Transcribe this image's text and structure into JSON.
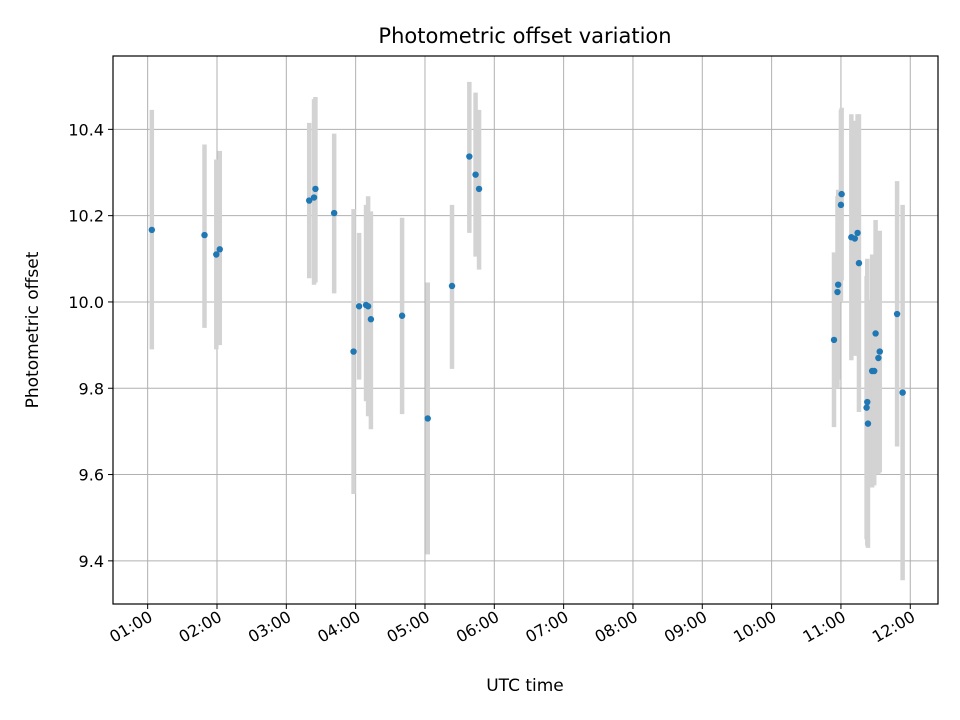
{
  "chart_data": {
    "type": "scatter",
    "title": "Photometric offset variation",
    "xlabel": "UTC time",
    "ylabel": "Photometric offset",
    "xlim_hours": [
      0.5,
      12.4
    ],
    "ylim": [
      9.3,
      10.57
    ],
    "grid": true,
    "x_ticks": [
      {
        "value": 1,
        "label": "01:00"
      },
      {
        "value": 2,
        "label": "02:00"
      },
      {
        "value": 3,
        "label": "03:00"
      },
      {
        "value": 4,
        "label": "04:00"
      },
      {
        "value": 5,
        "label": "05:00"
      },
      {
        "value": 6,
        "label": "06:00"
      },
      {
        "value": 7,
        "label": "07:00"
      },
      {
        "value": 8,
        "label": "08:00"
      },
      {
        "value": 9,
        "label": "09:00"
      },
      {
        "value": 10,
        "label": "10:00"
      },
      {
        "value": 11,
        "label": "11:00"
      },
      {
        "value": 12,
        "label": "12:00"
      }
    ],
    "y_ticks": [
      {
        "value": 9.4,
        "label": "9.4"
      },
      {
        "value": 9.6,
        "label": "9.6"
      },
      {
        "value": 9.8,
        "label": "9.8"
      },
      {
        "value": 10.0,
        "label": "10.0"
      },
      {
        "value": 10.2,
        "label": "10.2"
      },
      {
        "value": 10.4,
        "label": "10.4"
      }
    ],
    "colors": {
      "point": "#1f77b4",
      "errorbar": "#d3d3d3",
      "grid": "#b0b0b0"
    },
    "points": [
      {
        "x": 1.06,
        "y": 10.167,
        "lo": 9.89,
        "hi": 10.445
      },
      {
        "x": 1.82,
        "y": 10.155,
        "lo": 9.94,
        "hi": 10.365
      },
      {
        "x": 1.99,
        "y": 10.11,
        "lo": 9.89,
        "hi": 10.33
      },
      {
        "x": 2.04,
        "y": 10.122,
        "lo": 9.9,
        "hi": 10.35
      },
      {
        "x": 3.33,
        "y": 10.235,
        "lo": 10.055,
        "hi": 10.415
      },
      {
        "x": 3.4,
        "y": 10.242,
        "lo": 10.04,
        "hi": 10.47
      },
      {
        "x": 3.42,
        "y": 10.262,
        "lo": 10.045,
        "hi": 10.475
      },
      {
        "x": 3.69,
        "y": 10.206,
        "lo": 10.02,
        "hi": 10.39
      },
      {
        "x": 3.97,
        "y": 9.885,
        "lo": 9.555,
        "hi": 10.215
      },
      {
        "x": 4.05,
        "y": 9.99,
        "lo": 9.82,
        "hi": 10.16
      },
      {
        "x": 4.15,
        "y": 9.993,
        "lo": 9.77,
        "hi": 10.225
      },
      {
        "x": 4.18,
        "y": 9.99,
        "lo": 9.735,
        "hi": 10.245
      },
      {
        "x": 4.22,
        "y": 9.96,
        "lo": 9.705,
        "hi": 10.21
      },
      {
        "x": 4.67,
        "y": 9.968,
        "lo": 9.74,
        "hi": 10.195
      },
      {
        "x": 5.04,
        "y": 9.73,
        "lo": 9.415,
        "hi": 10.045
      },
      {
        "x": 5.39,
        "y": 10.037,
        "lo": 9.845,
        "hi": 10.225
      },
      {
        "x": 5.64,
        "y": 10.337,
        "lo": 10.16,
        "hi": 10.51
      },
      {
        "x": 5.73,
        "y": 10.295,
        "lo": 10.105,
        "hi": 10.485
      },
      {
        "x": 5.78,
        "y": 10.262,
        "lo": 10.075,
        "hi": 10.445
      },
      {
        "x": 10.9,
        "y": 9.912,
        "lo": 9.71,
        "hi": 10.115
      },
      {
        "x": 10.95,
        "y": 10.023,
        "lo": 9.8,
        "hi": 10.245
      },
      {
        "x": 10.96,
        "y": 10.04,
        "lo": 9.82,
        "hi": 10.26
      },
      {
        "x": 11.0,
        "y": 10.225,
        "lo": 10.0,
        "hi": 10.445
      },
      {
        "x": 11.01,
        "y": 10.25,
        "lo": 10.05,
        "hi": 10.45
      },
      {
        "x": 11.15,
        "y": 10.15,
        "lo": 9.865,
        "hi": 10.435
      },
      {
        "x": 11.2,
        "y": 10.147,
        "lo": 9.875,
        "hi": 10.42
      },
      {
        "x": 11.24,
        "y": 10.16,
        "lo": 9.885,
        "hi": 10.435
      },
      {
        "x": 11.26,
        "y": 10.09,
        "lo": 9.745,
        "hi": 10.435
      },
      {
        "x": 11.37,
        "y": 9.755,
        "lo": 9.45,
        "hi": 10.06
      },
      {
        "x": 11.38,
        "y": 9.768,
        "lo": 9.435,
        "hi": 10.1
      },
      {
        "x": 11.39,
        "y": 9.718,
        "lo": 9.43,
        "hi": 10.005
      },
      {
        "x": 11.45,
        "y": 9.84,
        "lo": 9.57,
        "hi": 10.11
      },
      {
        "x": 11.48,
        "y": 9.84,
        "lo": 9.575,
        "hi": 10.105
      },
      {
        "x": 11.5,
        "y": 9.927,
        "lo": 9.665,
        "hi": 10.19
      },
      {
        "x": 11.54,
        "y": 9.87,
        "lo": 9.6,
        "hi": 10.14
      },
      {
        "x": 11.56,
        "y": 9.885,
        "lo": 9.605,
        "hi": 10.165
      },
      {
        "x": 11.81,
        "y": 9.972,
        "lo": 9.665,
        "hi": 10.28
      },
      {
        "x": 11.89,
        "y": 9.79,
        "lo": 9.355,
        "hi": 10.225
      }
    ]
  }
}
